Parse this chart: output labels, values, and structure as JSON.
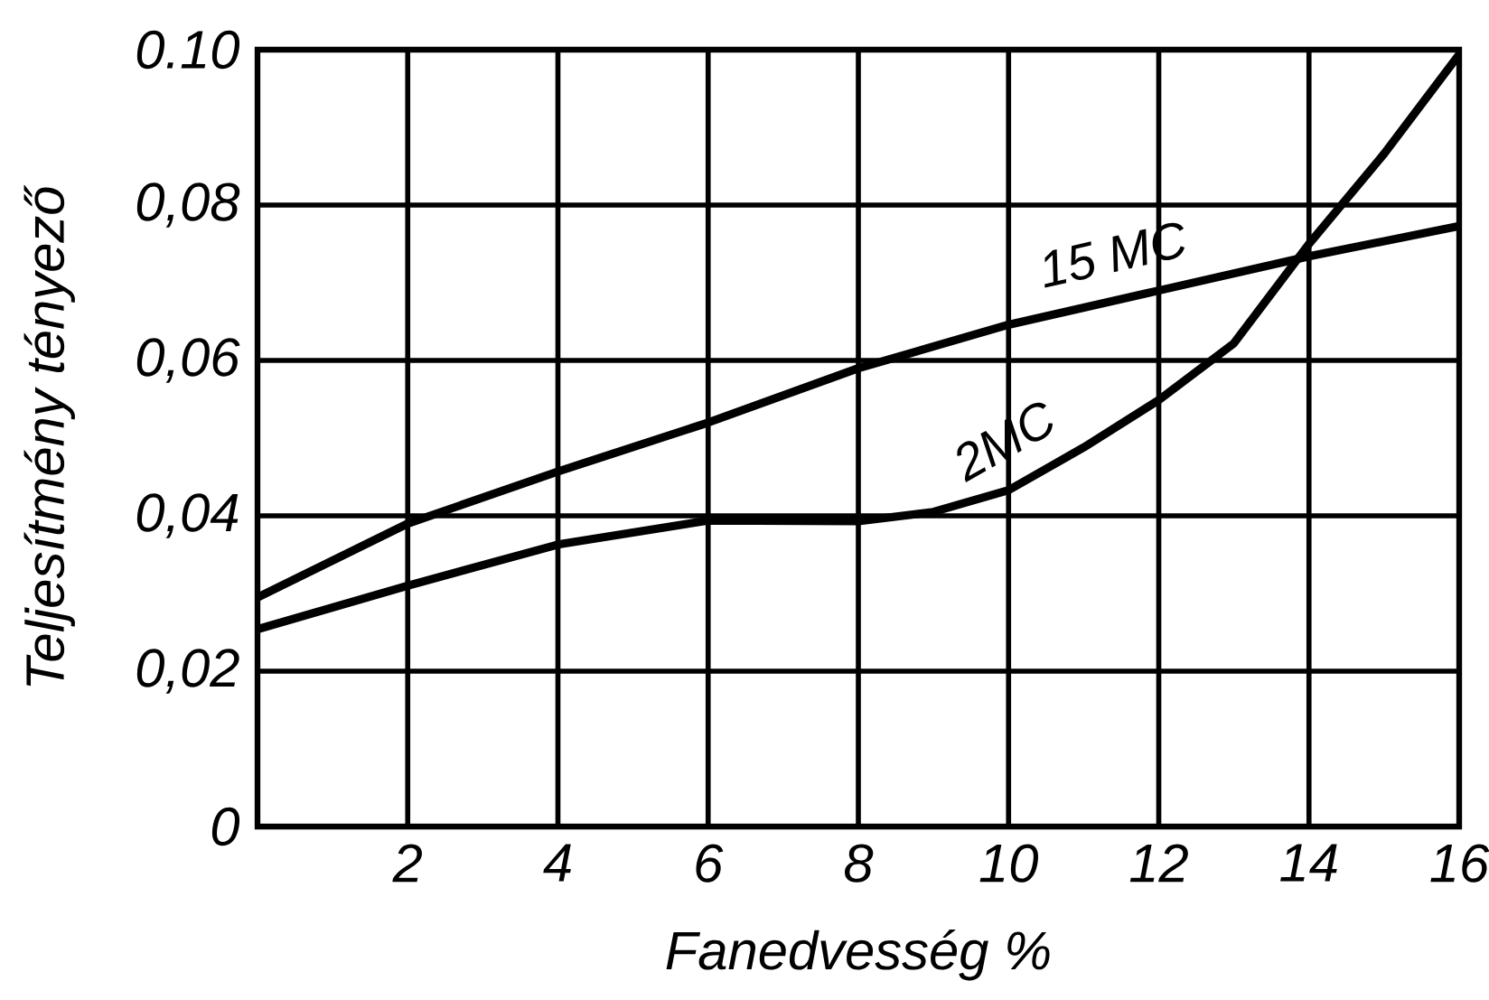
{
  "chart_data": {
    "type": "line",
    "xlabel": "Fanedvesség %",
    "ylabel": "Teljesítmény tényező",
    "xlim": [
      0,
      16
    ],
    "xticks": [
      2,
      4,
      6,
      8,
      10,
      12,
      14,
      16
    ],
    "ylim": [
      0,
      0.1
    ],
    "yticks": [
      {
        "value": 0,
        "label": "0"
      },
      {
        "value": 0.02,
        "label": "0,02"
      },
      {
        "value": 0.04,
        "label": "0,04"
      },
      {
        "value": 0.06,
        "label": "0,06"
      },
      {
        "value": 0.08,
        "label": "0,08"
      },
      {
        "value": 0.1,
        "label": "0.10"
      }
    ],
    "grid": true,
    "x": [
      0,
      2,
      4,
      6,
      8,
      10,
      12,
      14,
      16
    ],
    "series": [
      {
        "name": "15 MC",
        "color": "#000000",
        "values": [
          0.0295,
          0.039,
          0.0457,
          0.052,
          0.059,
          0.0646,
          0.069,
          0.0734,
          0.0773
        ]
      },
      {
        "name": "2MC",
        "color": "#000000",
        "x": [
          0,
          2,
          4,
          6,
          8,
          9,
          10,
          11,
          12,
          13,
          14,
          15,
          16
        ],
        "values": [
          0.0254,
          0.031,
          0.0363,
          0.0394,
          0.0393,
          0.0405,
          0.0433,
          0.0488,
          0.0549,
          0.0622,
          0.075,
          0.0866,
          0.0994
        ]
      }
    ]
  }
}
